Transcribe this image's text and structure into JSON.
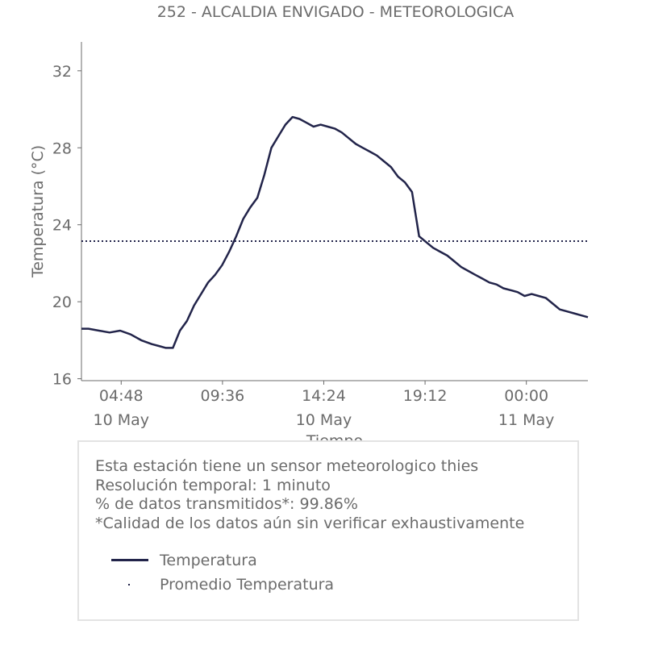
{
  "chart_data": {
    "type": "line",
    "title": "252 - ALCALDIA ENVIGADO - METEOROLOGICA",
    "xlabel": "Tiempo",
    "ylabel": "Temperatura (°C)",
    "x_ticks": [
      {
        "time": "04:48",
        "date": "10 May"
      },
      {
        "time": "09:36",
        "date": ""
      },
      {
        "time": "14:24",
        "date": "10 May"
      },
      {
        "time": "19:12",
        "date": ""
      },
      {
        "time": "00:00",
        "date": "11 May"
      }
    ],
    "x_tick_times": [
      "2024-05-10 04:48",
      "2024-05-10 09:36",
      "2024-05-10 14:24",
      "2024-05-10 19:12",
      "2024-05-11 00:00"
    ],
    "xlim": [
      "2024-05-10 02:55",
      "2024-05-11 02:55"
    ],
    "yticks": [
      16,
      20,
      24,
      28,
      32
    ],
    "ylim": [
      15.9,
      33.5
    ],
    "series": [
      {
        "name": "Temperatura",
        "color": "#22244a",
        "x": [
          "2024-05-10 02:55",
          "2024-05-10 03:15",
          "2024-05-10 03:45",
          "2024-05-10 04:15",
          "2024-05-10 04:45",
          "2024-05-10 05:15",
          "2024-05-10 05:45",
          "2024-05-10 06:15",
          "2024-05-10 06:35",
          "2024-05-10 06:55",
          "2024-05-10 07:15",
          "2024-05-10 07:35",
          "2024-05-10 07:55",
          "2024-05-10 08:15",
          "2024-05-10 08:35",
          "2024-05-10 08:55",
          "2024-05-10 09:15",
          "2024-05-10 09:35",
          "2024-05-10 09:55",
          "2024-05-10 10:15",
          "2024-05-10 10:35",
          "2024-05-10 10:55",
          "2024-05-10 11:15",
          "2024-05-10 11:35",
          "2024-05-10 11:55",
          "2024-05-10 12:15",
          "2024-05-10 12:35",
          "2024-05-10 12:55",
          "2024-05-10 13:15",
          "2024-05-10 13:35",
          "2024-05-10 13:55",
          "2024-05-10 14:15",
          "2024-05-10 14:35",
          "2024-05-10 14:55",
          "2024-05-10 15:15",
          "2024-05-10 15:35",
          "2024-05-10 15:55",
          "2024-05-10 16:15",
          "2024-05-10 16:35",
          "2024-05-10 16:55",
          "2024-05-10 17:15",
          "2024-05-10 17:35",
          "2024-05-10 17:55",
          "2024-05-10 18:15",
          "2024-05-10 18:35",
          "2024-05-10 18:55",
          "2024-05-10 19:15",
          "2024-05-10 19:35",
          "2024-05-10 19:55",
          "2024-05-10 20:15",
          "2024-05-10 20:35",
          "2024-05-10 20:55",
          "2024-05-10 21:15",
          "2024-05-10 21:35",
          "2024-05-10 21:55",
          "2024-05-10 22:15",
          "2024-05-10 22:35",
          "2024-05-10 22:55",
          "2024-05-10 23:15",
          "2024-05-10 23:35",
          "2024-05-10 23:55",
          "2024-05-11 00:15",
          "2024-05-11 00:35",
          "2024-05-11 00:55",
          "2024-05-11 01:15",
          "2024-05-11 01:35",
          "2024-05-11 01:55",
          "2024-05-11 02:15",
          "2024-05-11 02:35",
          "2024-05-11 02:55"
        ],
        "y": [
          18.6,
          18.6,
          18.5,
          18.4,
          18.5,
          18.3,
          18.0,
          17.8,
          17.7,
          17.6,
          17.6,
          18.5,
          19.0,
          19.8,
          20.4,
          21.0,
          21.4,
          21.9,
          22.6,
          23.4,
          24.3,
          24.9,
          25.4,
          26.6,
          28.0,
          28.6,
          29.2,
          29.6,
          29.5,
          29.3,
          29.1,
          29.2,
          29.1,
          29.0,
          28.8,
          28.5,
          28.2,
          28.0,
          27.8,
          27.6,
          27.3,
          27.0,
          26.5,
          26.2,
          25.7,
          23.4,
          23.1,
          22.8,
          22.6,
          22.4,
          22.1,
          21.8,
          21.6,
          21.4,
          21.2,
          21.0,
          20.9,
          20.7,
          20.6,
          20.5,
          20.3,
          20.4,
          20.3,
          20.2,
          19.9,
          19.6,
          19.5,
          19.4,
          19.3,
          19.2
        ]
      },
      {
        "name": "Promedio Temperatura",
        "color": "#22244a",
        "style": "dotted",
        "x": [
          "2024-05-10 02:55",
          "2024-05-11 02:55"
        ],
        "y": [
          23.15,
          23.15
        ]
      }
    ],
    "grid": false,
    "legend_position": "bottom-box"
  },
  "info": {
    "line1": "Esta estación tiene un sensor meteorologico thies",
    "line2": "Resolución temporal: 1 minuto",
    "line3": "% de datos transmitidos*: 99.86%",
    "line4": "*Calidad de los datos aún sin verificar exhaustivamente"
  },
  "legend": {
    "item1": "Temperatura",
    "item2": "Promedio Temperatura"
  }
}
